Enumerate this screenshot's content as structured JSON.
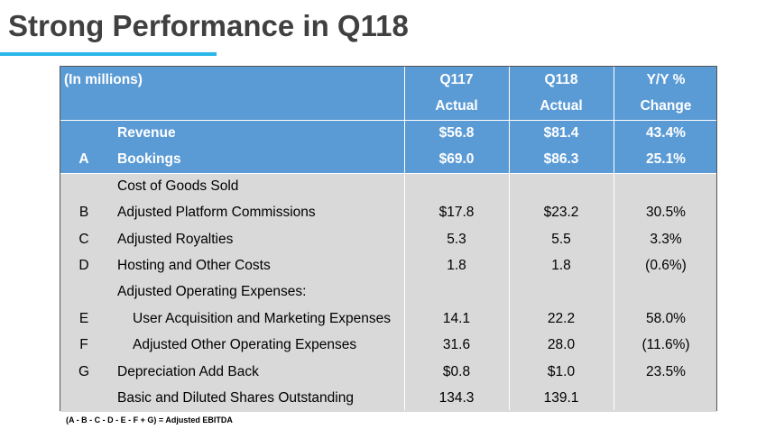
{
  "header": {
    "title": "Strong Performance in Q118"
  },
  "table": {
    "columns": [
      {
        "lines": [
          "(In millions)"
        ]
      },
      {
        "lines": [
          "Q117",
          "Actual"
        ]
      },
      {
        "lines": [
          "Q118",
          "Actual"
        ]
      },
      {
        "lines": [
          "Y/Y %",
          "Change"
        ]
      }
    ],
    "rows": [
      {
        "label": "Revenue",
        "cells": [
          "$56.8",
          "$81.4",
          "43.4%"
        ],
        "highlight": true
      },
      {
        "letter": "A",
        "label": "Bookings",
        "cells": [
          "$69.0",
          "$86.3",
          "25.1%"
        ],
        "highlight": true
      },
      {
        "label": "Cost of Goods Sold"
      },
      {
        "letter": "B",
        "label": "Adjusted Platform Commissions",
        "cells": [
          "$17.8",
          "$23.2",
          "30.5%"
        ]
      },
      {
        "letter": "C",
        "label": "Adjusted Royalties",
        "cells": [
          "5.3",
          "5.5",
          "3.3%"
        ]
      },
      {
        "letter": "D",
        "label": "Hosting and Other Costs",
        "cells": [
          "1.8",
          "1.8",
          "(0.6%)"
        ]
      },
      {
        "label": "Adjusted Operating Expenses:"
      },
      {
        "letter": "E",
        "label": "User Acquisition and Marketing Expenses",
        "cells": [
          "14.1",
          "22.2",
          "58.0%"
        ],
        "indent": true
      },
      {
        "letter": "F",
        "label": "Adjusted Other Operating Expenses",
        "cells": [
          "31.6",
          "28.0",
          "(11.6%)"
        ],
        "indent": true
      },
      {
        "letter": "G",
        "label": "Depreciation Add Back",
        "cells": [
          "$0.8",
          "$1.0",
          "23.5%"
        ]
      },
      {
        "label": "Basic and Diluted Shares Outstanding",
        "cells": [
          "134.3",
          "139.1"
        ]
      }
    ],
    "footnote": "(A - B - C - D - E - F + G) = Adjusted EBITDA"
  }
}
